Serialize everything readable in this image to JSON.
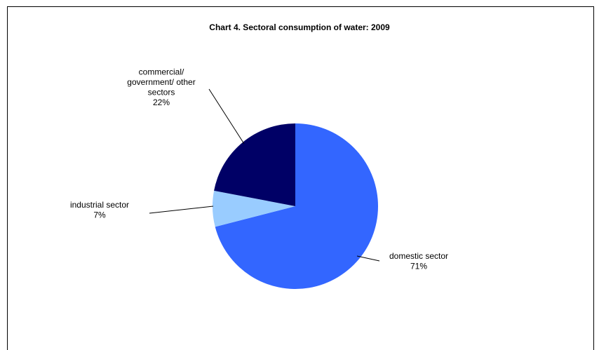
{
  "chart_data": {
    "type": "pie",
    "title": "Chart 4.  Sectoral consumption of water: 2009",
    "slices": [
      {
        "label_lines": [
          "domestic sector"
        ],
        "percent_label": "71%",
        "value": 71,
        "color": "#3366FF"
      },
      {
        "label_lines": [
          "industrial sector"
        ],
        "percent_label": "7%",
        "value": 7,
        "color": "#99CCFF"
      },
      {
        "label_lines": [
          "commercial/",
          "government/ other",
          "sectors"
        ],
        "percent_label": "22%",
        "value": 22,
        "color": "#000066"
      }
    ],
    "legend": "none"
  }
}
